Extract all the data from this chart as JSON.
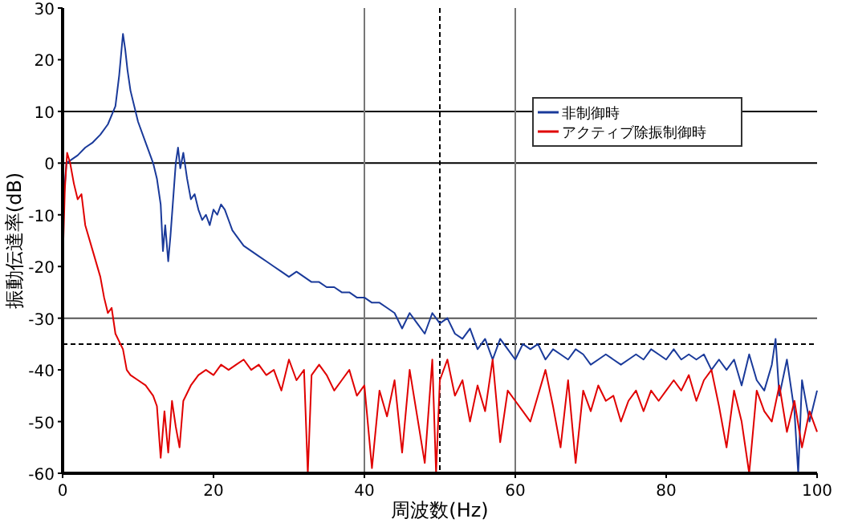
{
  "chart_data": {
    "type": "line",
    "xlabel": "周波数(Hz)",
    "ylabel": "振動伝達率(dB)",
    "xlim": [
      0,
      100
    ],
    "ylim": [
      -60,
      30
    ],
    "xticks": [
      0,
      20,
      40,
      60,
      80,
      100
    ],
    "yticks": [
      -60,
      -50,
      -40,
      -30,
      -20,
      -10,
      0,
      10,
      20,
      30
    ],
    "grid": false,
    "legend": "top right",
    "line_style": "solid",
    "marker": "none",
    "ref_lines": [
      {
        "axis": "y",
        "value": 10,
        "color": "#000000"
      },
      {
        "axis": "y",
        "value": 0,
        "color": "#000000"
      },
      {
        "axis": "y",
        "value": -30,
        "color": "#555555"
      },
      {
        "axis": "y",
        "value": -35,
        "color": "#000000",
        "line_style": "dashed"
      },
      {
        "axis": "x",
        "value": 40,
        "color": "#777777"
      },
      {
        "axis": "x",
        "value": 60,
        "color": "#777777"
      },
      {
        "axis": "x",
        "value": 50,
        "color": "#000000",
        "line_style": "dashed"
      }
    ],
    "series": [
      {
        "name": "非制御時",
        "color": "#1a3a9a",
        "x": [
          0,
          0.5,
          1,
          2,
          3,
          4,
          5,
          6,
          7,
          7.5,
          8,
          8.3,
          8.6,
          9,
          10,
          11,
          12,
          12.5,
          13,
          13.3,
          13.6,
          14,
          14.3,
          14.6,
          15,
          15.3,
          15.6,
          16,
          16.5,
          17,
          17.5,
          18,
          18.5,
          19,
          19.5,
          20,
          20.5,
          21,
          21.5,
          22,
          22.5,
          23,
          24,
          25,
          26,
          27,
          28,
          29,
          30,
          31,
          32,
          33,
          34,
          35,
          36,
          37,
          38,
          39,
          40,
          41,
          42,
          43,
          44,
          45,
          46,
          47,
          48,
          49,
          50,
          51,
          52,
          53,
          54,
          55,
          56,
          57,
          58,
          59,
          60,
          61,
          62,
          63,
          64,
          65,
          66,
          67,
          68,
          69,
          70,
          71,
          72,
          73,
          74,
          75,
          76,
          77,
          78,
          79,
          80,
          81,
          82,
          83,
          84,
          85,
          86,
          87,
          88,
          89,
          90,
          91,
          92,
          93,
          94,
          94.5,
          95,
          96,
          97,
          97.5,
          98,
          99,
          100
        ],
        "values": [
          -10,
          0,
          0.5,
          1.5,
          3,
          4,
          5.5,
          7.5,
          11,
          17,
          25,
          22,
          18,
          14,
          8,
          4,
          0,
          -3,
          -8,
          -17,
          -12,
          -19,
          -14,
          -8,
          0,
          3,
          -1,
          2,
          -3,
          -7,
          -6,
          -9,
          -11,
          -10,
          -12,
          -9,
          -10,
          -8,
          -9,
          -11,
          -13,
          -14,
          -16,
          -17,
          -18,
          -19,
          -20,
          -21,
          -22,
          -21,
          -22,
          -23,
          -23,
          -24,
          -24,
          -25,
          -25,
          -26,
          -26,
          -27,
          -27,
          -28,
          -29,
          -32,
          -29,
          -31,
          -33,
          -29,
          -31,
          -30,
          -33,
          -34,
          -32,
          -36,
          -34,
          -38,
          -34,
          -36,
          -38,
          -35,
          -36,
          -35,
          -38,
          -36,
          -37,
          -38,
          -36,
          -37,
          -39,
          -38,
          -37,
          -38,
          -39,
          -38,
          -37,
          -38,
          -36,
          -37,
          -38,
          -36,
          -38,
          -37,
          -38,
          -37,
          -40,
          -38,
          -40,
          -38,
          -43,
          -37,
          -42,
          -44,
          -39,
          -34,
          -45,
          -38,
          -48,
          -60,
          -42,
          -50,
          -44
        ]
      },
      {
        "name": "アクティブ除振制御時",
        "color": "#e00000",
        "x": [
          0,
          0.3,
          0.6,
          1,
          1.5,
          2,
          2.5,
          3,
          4,
          5,
          5.5,
          6,
          6.5,
          7,
          8,
          8.5,
          9,
          10,
          11,
          12,
          12.5,
          13,
          13.5,
          14,
          14.5,
          15,
          15.5,
          16,
          17,
          18,
          19,
          20,
          21,
          22,
          23,
          24,
          25,
          26,
          27,
          28,
          29,
          30,
          31,
          32,
          32.5,
          33,
          34,
          35,
          36,
          37,
          38,
          39,
          40,
          41,
          42,
          43,
          44,
          45,
          46,
          47,
          48,
          49,
          49.5,
          50,
          51,
          52,
          53,
          54,
          55,
          56,
          57,
          58,
          59,
          60,
          61,
          62,
          63,
          64,
          65,
          66,
          67,
          68,
          69,
          70,
          71,
          72,
          73,
          74,
          75,
          76,
          77,
          78,
          79,
          80,
          81,
          82,
          83,
          84,
          85,
          86,
          87,
          88,
          89,
          90,
          91,
          92,
          93,
          94,
          95,
          96,
          97,
          98,
          99,
          100
        ],
        "values": [
          -20,
          -5,
          2,
          0,
          -4,
          -7,
          -6,
          -12,
          -17,
          -22,
          -26,
          -29,
          -28,
          -33,
          -36,
          -40,
          -41,
          -42,
          -43,
          -45,
          -47,
          -57,
          -48,
          -56,
          -46,
          -51,
          -55,
          -46,
          -43,
          -41,
          -40,
          -41,
          -39,
          -40,
          -39,
          -38,
          -40,
          -39,
          -41,
          -40,
          -44,
          -38,
          -42,
          -40,
          -60,
          -41,
          -39,
          -41,
          -44,
          -42,
          -40,
          -45,
          -43,
          -59,
          -44,
          -49,
          -42,
          -56,
          -40,
          -49,
          -58,
          -38,
          -60,
          -42,
          -38,
          -45,
          -42,
          -50,
          -43,
          -48,
          -38,
          -54,
          -44,
          -46,
          -48,
          -50,
          -45,
          -40,
          -47,
          -55,
          -42,
          -58,
          -44,
          -48,
          -43,
          -46,
          -45,
          -50,
          -46,
          -44,
          -48,
          -44,
          -46,
          -44,
          -42,
          -44,
          -41,
          -46,
          -42,
          -40,
          -47,
          -55,
          -44,
          -50,
          -60,
          -44,
          -48,
          -50,
          -43,
          -52,
          -46,
          -55,
          -48,
          -52
        ]
      }
    ]
  }
}
